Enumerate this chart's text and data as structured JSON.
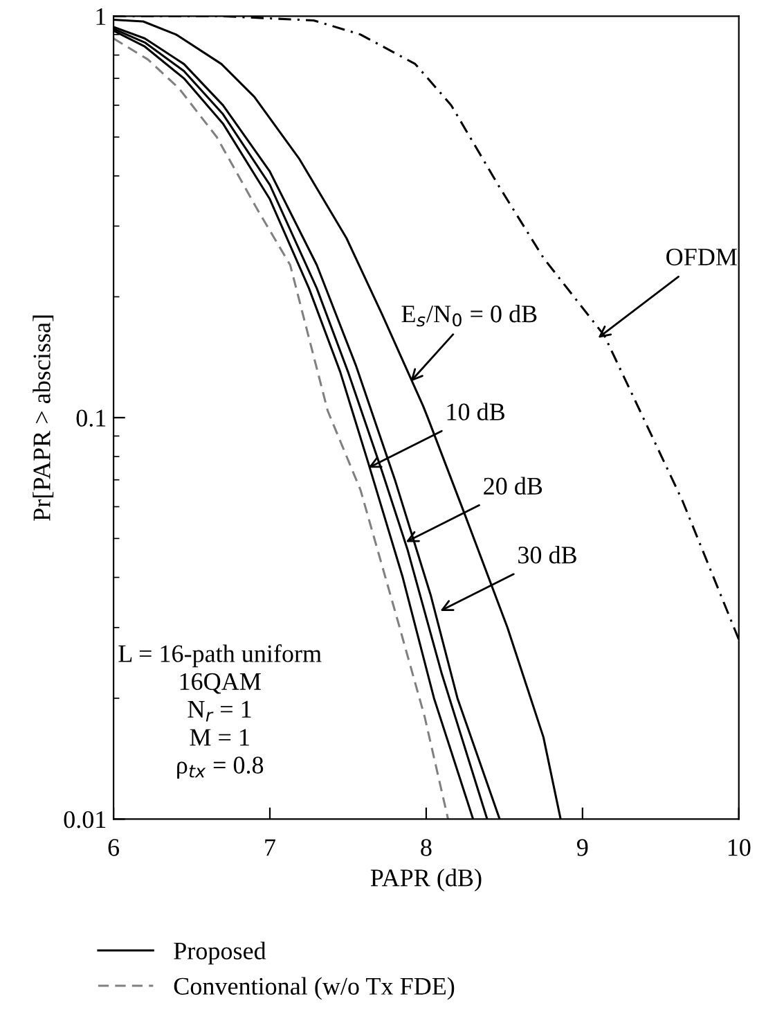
{
  "chart_data": {
    "type": "line",
    "xlabel": "PAPR (dB)",
    "ylabel": "Pr[PAPR > abscissa]",
    "log": "y",
    "xlim": [
      6,
      10
    ],
    "ylim": [
      0.01,
      1
    ],
    "xticks": [
      6,
      7,
      8,
      9,
      10
    ],
    "yticks": [
      0.01,
      0.1,
      1
    ],
    "grid": false,
    "legend": "bottom",
    "marker": "none",
    "series": [
      {
        "name": "Proposed",
        "color": "#000000",
        "line_style": "solid",
        "x": [
          6,
          6.19,
          6.4,
          6.69,
          6.9,
          7.19,
          7.49,
          7.72,
          7.98,
          8.01,
          8.25,
          8.52,
          8.75,
          8.86
        ],
        "values": [
          0.98,
          0.97,
          0.9,
          0.76,
          0.63,
          0.44,
          0.28,
          0.18,
          0.107,
          0.1,
          0.057,
          0.03,
          0.016,
          0.01
        ]
      },
      {
        "color": "#000000",
        "line_style": "solid",
        "x": [
          6,
          6.2,
          6.45,
          6.7,
          7.0,
          7.25,
          7.45,
          7.63,
          7.85,
          8.05,
          8.3
        ],
        "values": [
          0.92,
          0.84,
          0.7,
          0.54,
          0.35,
          0.21,
          0.13,
          0.077,
          0.04,
          0.02,
          0.01
        ]
      },
      {
        "color": "#000000",
        "line_style": "solid",
        "x": [
          6,
          6.2,
          6.45,
          6.7,
          7.0,
          7.3,
          7.5,
          7.72,
          7.88,
          8.1,
          8.39
        ],
        "values": [
          0.93,
          0.86,
          0.73,
          0.57,
          0.38,
          0.21,
          0.13,
          0.073,
          0.047,
          0.023,
          0.01
        ]
      },
      {
        "color": "#000000",
        "line_style": "solid",
        "x": [
          6,
          6.2,
          6.45,
          6.7,
          7.0,
          7.3,
          7.55,
          7.8,
          8.03,
          8.2,
          8.47
        ],
        "values": [
          0.94,
          0.88,
          0.76,
          0.6,
          0.41,
          0.24,
          0.135,
          0.07,
          0.036,
          0.02,
          0.01
        ]
      },
      {
        "name": "Conventional (w/o Tx FDE)",
        "color": "#808080",
        "line_style": "dashed",
        "x": [
          6,
          6.22,
          6.42,
          6.66,
          6.92,
          7.13,
          7.37,
          7.58,
          7.81,
          7.99,
          8.14
        ],
        "values": [
          0.88,
          0.78,
          0.66,
          0.5,
          0.33,
          0.24,
          0.104,
          0.066,
          0.032,
          0.018,
          0.01
        ]
      },
      {
        "color": "#000000",
        "line_style": "dashdot",
        "x": [
          6,
          6.69,
          7.28,
          7.58,
          7.93,
          8.16,
          8.46,
          8.75,
          9.14,
          9.31,
          9.64,
          10
        ],
        "values": [
          1,
          1,
          0.976,
          0.9,
          0.76,
          0.6,
          0.38,
          0.25,
          0.16,
          0.116,
          0.062,
          0.028
        ]
      }
    ],
    "annotations": [
      {
        "text": "E$_{s}$/N$_{0}$ = 0 dB",
        "x": 7.9,
        "y": 0.123
      },
      {
        "text": "OFDM",
        "x": 9.1,
        "y": 0.158
      },
      {
        "text": "10 dB",
        "x": 7.63,
        "y": 0.075
      },
      {
        "text": "20 dB",
        "x": 7.87,
        "y": 0.049
      },
      {
        "text": "30 dB",
        "x": 8.09,
        "y": 0.033
      },
      "L = 16-path uniform\n16QAM\nN$_{r}$ = 1\nM = 1\nρ$_{tx}$ = 0.8"
    ]
  }
}
